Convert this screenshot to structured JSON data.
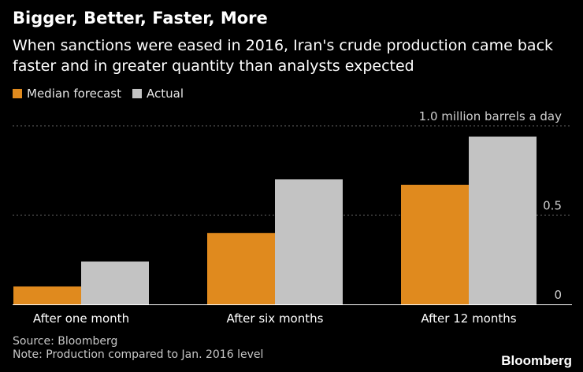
{
  "chart_data": {
    "type": "bar",
    "title": "Bigger, Better, Faster, More",
    "subtitle": "When sanctions were eased in 2016, Iran's crude production came back faster and in greater quantity than analysts expected",
    "categories": [
      "After one month",
      "After six months",
      "After 12 months"
    ],
    "series": [
      {
        "name": "Median forecast",
        "color": "#e08a1e",
        "values": [
          0.1,
          0.4,
          0.67
        ]
      },
      {
        "name": "Actual",
        "color": "#c3c3c3",
        "values": [
          0.24,
          0.7,
          0.94
        ]
      }
    ],
    "ylim": [
      0,
      1.0
    ],
    "yticks": [
      {
        "value": 0,
        "label": "0"
      },
      {
        "value": 0.5,
        "label": "0.5"
      },
      {
        "value": 1.0,
        "label": "1.0 million barrels a day"
      }
    ],
    "ylabel": "",
    "xlabel": "",
    "grid": true,
    "legend_position": "top-left"
  },
  "footer": {
    "source": "Source: Bloomberg",
    "note": "Note: Production compared to Jan. 2016 level",
    "brand": "Bloomberg"
  }
}
